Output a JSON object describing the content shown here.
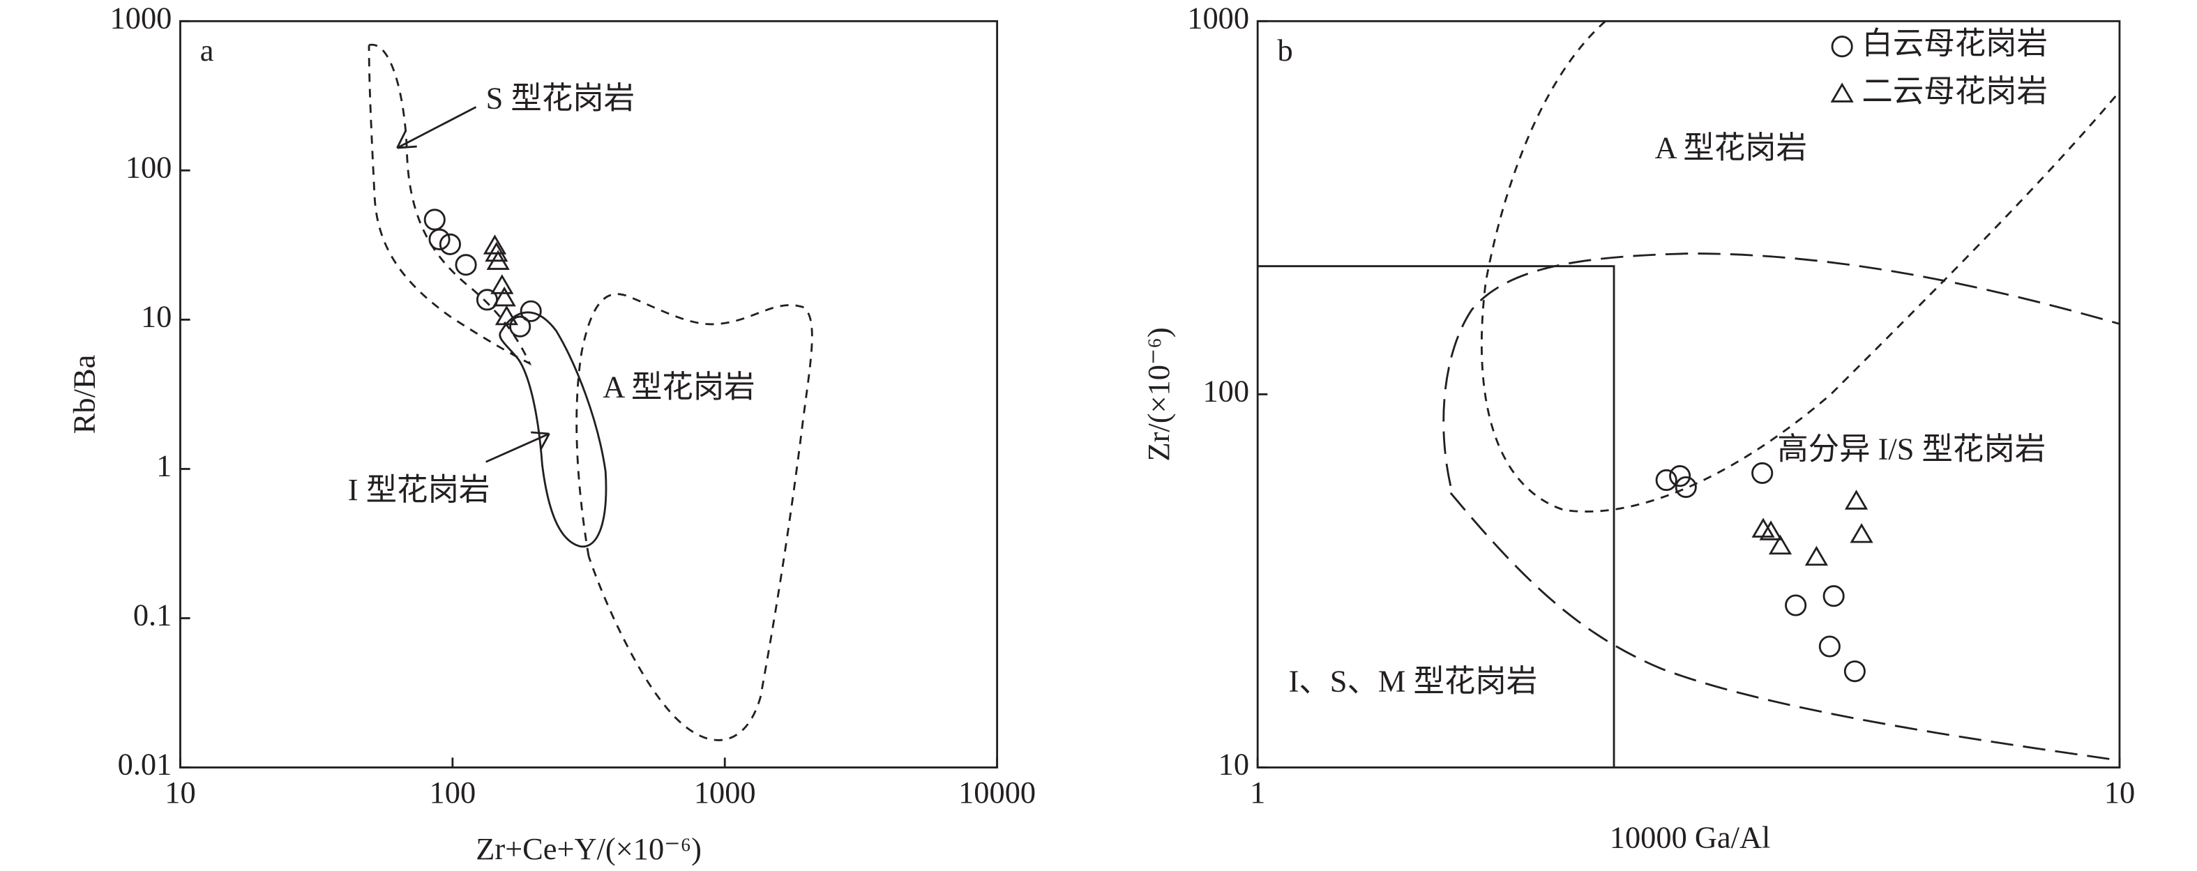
{
  "chart_data": [
    {
      "type": "scatter",
      "panel_label": "a",
      "x_label": "Zr+Ce+Y/(×10⁻⁶)",
      "y_label": "Rb/Ba",
      "xscale": "log",
      "yscale": "log",
      "xlim": [
        10,
        10000
      ],
      "ylim": [
        0.01,
        1000
      ],
      "xticks": [
        10,
        100,
        1000,
        10000
      ],
      "yticks": [
        0.01,
        0.1,
        1,
        10,
        100,
        1000
      ],
      "annotations": [
        "S 型花岗岩",
        "A 型花岗岩",
        "I 型花岗岩"
      ],
      "series": [
        {
          "marker": "circle",
          "color": "#231f20",
          "x": [
            86,
            89.5,
            98,
            112,
            134,
            177,
            194
          ],
          "y": [
            46.8,
            34.5,
            32,
            23.3,
            13.6,
            9.0,
            11.4
          ]
        },
        {
          "marker": "triangle",
          "color": "#231f20",
          "x": [
            143,
            145,
            147,
            152,
            155,
            158
          ],
          "y": [
            31,
            27.7,
            24.4,
            16.8,
            13.9,
            10.4
          ]
        }
      ]
    },
    {
      "type": "scatter",
      "panel_label": "b",
      "x_label": "10000 Ga/Al",
      "y_label": "Zr/(×10⁻⁶)",
      "xscale": "log",
      "yscale": "log",
      "xlim": [
        1,
        10
      ],
      "ylim": [
        10,
        1000
      ],
      "xticks": [
        1,
        10
      ],
      "yticks": [
        10,
        100,
        1000
      ],
      "legend": "upper right",
      "annotations": [
        "A 型花岗岩",
        "高分异 I/S 型花岗岩",
        "I、S、M 型花岗岩"
      ],
      "series": [
        {
          "name": "白云母花岗岩",
          "marker": "circle",
          "color": "#231f20",
          "x": [
            2.98,
            3.09,
            3.14,
            3.85,
            4.21,
            4.66,
            4.61,
            4.93
          ],
          "y": [
            58.9,
            60.4,
            56.4,
            61.5,
            27.2,
            28.8,
            21.1,
            18.1
          ]
        },
        {
          "name": "二云母花岗岩",
          "marker": "triangle",
          "color": "#231f20",
          "x": [
            3.86,
            3.94,
            4.04,
            4.45,
            4.95,
            5.02
          ],
          "y": [
            43.4,
            42.7,
            39.1,
            36.5,
            51.6,
            42.0
          ]
        }
      ]
    }
  ]
}
